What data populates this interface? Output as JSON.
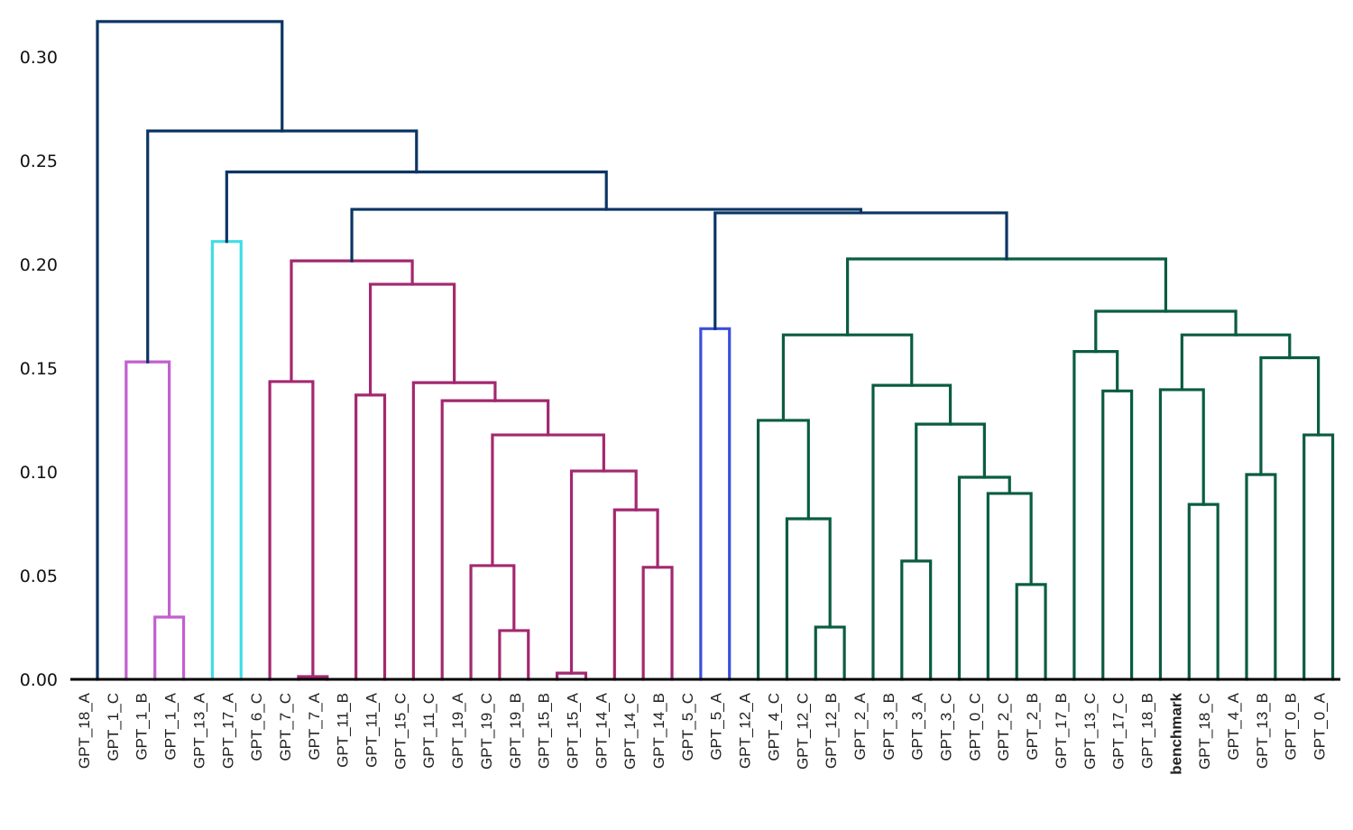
{
  "chart_data": {
    "type": "dendrogram",
    "title": "",
    "xlabel": "",
    "ylabel": "",
    "ylim": [
      0,
      0.32
    ],
    "yticks": [
      0.0,
      0.05,
      0.1,
      0.15,
      0.2,
      0.25,
      0.3
    ],
    "ytick_labels": [
      "0.00",
      "0.05",
      "0.10",
      "0.15",
      "0.20",
      "0.25",
      "0.30"
    ],
    "grid": false,
    "leaves": [
      "GPT_18_A",
      "GPT_1_C",
      "GPT_1_B",
      "GPT_1_A",
      "GPT_13_A",
      "GPT_17_A",
      "GPT_6_C",
      "GPT_7_C",
      "GPT_7_A",
      "GPT_11_B",
      "GPT_11_A",
      "GPT_15_C",
      "GPT_11_C",
      "GPT_19_A",
      "GPT_19_C",
      "GPT_19_B",
      "GPT_15_B",
      "GPT_15_A",
      "GPT_14_A",
      "GPT_14_C",
      "GPT_14_B",
      "GPT_5_C",
      "GPT_5_A",
      "GPT_12_A",
      "GPT_4_C",
      "GPT_12_C",
      "GPT_12_B",
      "GPT_2_A",
      "GPT_3_B",
      "GPT_3_A",
      "GPT_3_C",
      "GPT_0_C",
      "GPT_2_C",
      "GPT_2_B",
      "GPT_17_B",
      "GPT_13_C",
      "GPT_17_C",
      "GPT_18_B",
      "benchmark",
      "GPT_18_C",
      "GPT_4_A",
      "GPT_13_B",
      "GPT_0_B",
      "GPT_0_A"
    ],
    "highlight_leaf": "benchmark",
    "highlight_color": "#a3286f",
    "cluster_colors": {
      "above_threshold": "#0b3563",
      "purple": "#c25fcf",
      "cyan": "#3fdde6",
      "magenta": "#a3286f",
      "blue": "#3a4fdc",
      "green": "#0a5c42"
    },
    "merges": [
      {
        "id": "m1",
        "left": "GPT_7_C",
        "right": "GPT_7_A",
        "height": 0.0013,
        "color": "magenta"
      },
      {
        "id": "m2",
        "left": "GPT_15_B",
        "right": "GPT_15_A",
        "height": 0.003,
        "color": "magenta"
      },
      {
        "id": "m3",
        "left": "GPT_19_C",
        "right": "GPT_19_B",
        "height": 0.0235,
        "color": "magenta"
      },
      {
        "id": "m4",
        "left": "GPT_12_C",
        "right": "GPT_12_B",
        "height": 0.0252,
        "color": "green"
      },
      {
        "id": "m5",
        "left": "GPT_1_B",
        "right": "GPT_1_A",
        "height": 0.03,
        "color": "purple"
      },
      {
        "id": "m6",
        "left": "GPT_2_C",
        "right": "GPT_2_B",
        "height": 0.0457,
        "color": "green"
      },
      {
        "id": "m7",
        "left": "GPT_14_C",
        "right": "GPT_14_B",
        "height": 0.054,
        "color": "magenta"
      },
      {
        "id": "m8",
        "left": "GPT_19_A",
        "right": "m3",
        "height": 0.0548,
        "color": "magenta"
      },
      {
        "id": "m9",
        "left": "GPT_3_B",
        "right": "GPT_3_A",
        "height": 0.057,
        "color": "green"
      },
      {
        "id": "m10",
        "left": "GPT_4_C",
        "right": "m4",
        "height": 0.0774,
        "color": "green"
      },
      {
        "id": "m11",
        "left": "GPT_14_A",
        "right": "m7",
        "height": 0.0817,
        "color": "magenta"
      },
      {
        "id": "m12",
        "left": "benchmark",
        "right": "GPT_18_C",
        "height": 0.0843,
        "color": "green"
      },
      {
        "id": "m13",
        "left": "GPT_0_C",
        "right": "m6",
        "height": 0.0896,
        "color": "green"
      },
      {
        "id": "m14",
        "left": "GPT_3_C",
        "right": "m13",
        "height": 0.0974,
        "color": "green"
      },
      {
        "id": "m15",
        "left": "GPT_4_A",
        "right": "GPT_13_B",
        "height": 0.0987,
        "color": "green"
      },
      {
        "id": "m16",
        "left": "m2",
        "right": "m11",
        "height": 0.1004,
        "color": "magenta"
      },
      {
        "id": "m17",
        "left": "m8",
        "right": "m16",
        "height": 0.1178,
        "color": "magenta"
      },
      {
        "id": "m18",
        "left": "GPT_0_B",
        "right": "GPT_0_A",
        "height": 0.1178,
        "color": "green"
      },
      {
        "id": "m19",
        "left": "m9",
        "right": "m14",
        "height": 0.123,
        "color": "green"
      },
      {
        "id": "m20",
        "left": "GPT_12_A",
        "right": "m10",
        "height": 0.1248,
        "color": "green"
      },
      {
        "id": "m21",
        "left": "GPT_11_C",
        "right": "m17",
        "height": 0.1343,
        "color": "magenta"
      },
      {
        "id": "m22",
        "left": "GPT_11_B",
        "right": "GPT_11_A",
        "height": 0.137,
        "color": "magenta"
      },
      {
        "id": "m23",
        "left": "GPT_13_C",
        "right": "GPT_17_C",
        "height": 0.139,
        "color": "green"
      },
      {
        "id": "m24",
        "left": "GPT_18_B",
        "right": "m12",
        "height": 0.1396,
        "color": "green"
      },
      {
        "id": "m25",
        "left": "GPT_2_A",
        "right": "m19",
        "height": 0.1417,
        "color": "green"
      },
      {
        "id": "m26",
        "left": "GPT_15_C",
        "right": "m21",
        "height": 0.143,
        "color": "magenta"
      },
      {
        "id": "m27",
        "left": "GPT_6_C",
        "right": "m1",
        "height": 0.1435,
        "color": "magenta"
      },
      {
        "id": "m28",
        "left": "GPT_1_C",
        "right": "m5",
        "height": 0.153,
        "color": "purple"
      },
      {
        "id": "m29",
        "left": "m15",
        "right": "m18",
        "height": 0.155,
        "color": "green"
      },
      {
        "id": "m30",
        "left": "GPT_17_B",
        "right": "m23",
        "height": 0.158,
        "color": "green"
      },
      {
        "id": "m31",
        "left": "m20",
        "right": "m25",
        "height": 0.166,
        "color": "green"
      },
      {
        "id": "m32",
        "left": "m24",
        "right": "m29",
        "height": 0.166,
        "color": "green"
      },
      {
        "id": "m33",
        "left": "GPT_5_C",
        "right": "GPT_5_A",
        "height": 0.169,
        "color": "blue"
      },
      {
        "id": "m34",
        "left": "m30",
        "right": "m32",
        "height": 0.1774,
        "color": "green"
      },
      {
        "id": "m35",
        "left": "m22",
        "right": "m26",
        "height": 0.1904,
        "color": "magenta"
      },
      {
        "id": "m36",
        "left": "m27",
        "right": "m35",
        "height": 0.2017,
        "color": "magenta"
      },
      {
        "id": "m37",
        "left": "m31",
        "right": "m34",
        "height": 0.2026,
        "color": "green"
      },
      {
        "id": "m38",
        "left": "GPT_13_A",
        "right": "GPT_17_A",
        "height": 0.211,
        "color": "cyan"
      },
      {
        "id": "m39",
        "left": "m33",
        "right": "m37",
        "height": 0.2248,
        "color": "above_threshold"
      },
      {
        "id": "m40",
        "left": "m36",
        "right": "m39",
        "height": 0.2265,
        "color": "above_threshold"
      },
      {
        "id": "m41",
        "left": "m38",
        "right": "m40",
        "height": 0.2445,
        "color": "above_threshold"
      },
      {
        "id": "m42",
        "left": "m28",
        "right": "m41",
        "height": 0.2643,
        "color": "above_threshold"
      },
      {
        "id": "m43",
        "left": "GPT_18_A",
        "right": "m42",
        "height": 0.317,
        "color": "above_threshold"
      }
    ]
  }
}
